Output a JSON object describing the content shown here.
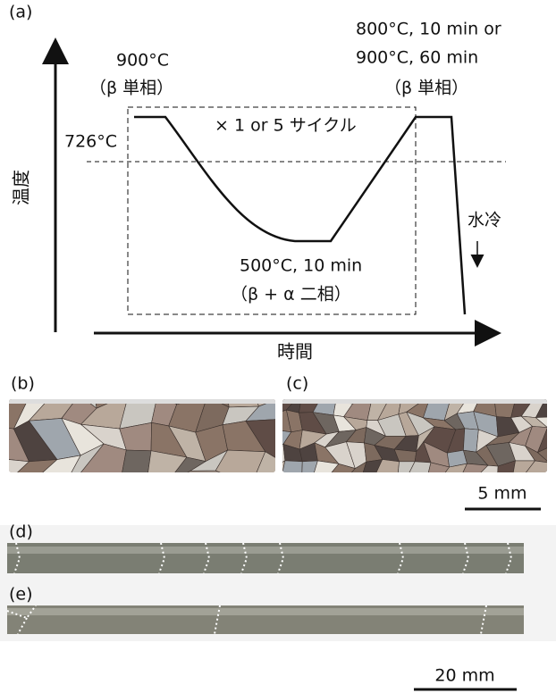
{
  "panel_a": {
    "label": "(a)",
    "y_axis": "温度",
    "x_axis": "時間",
    "start_temp": "900°C",
    "start_phase": "（β 単相）",
    "end_temp_1": "800°C, 10 min or",
    "end_temp_2": "900°C, 60 min",
    "end_phase": "（β 単相）",
    "cycle": "× 1 or 5 サイクル",
    "transus": "726°C",
    "quench": "水冷",
    "hold_temp": "500°C, 10 min",
    "hold_phase": "（β + α 二相）"
  },
  "panel_b": {
    "label": "(b)"
  },
  "panel_c": {
    "label": "(c)"
  },
  "scale_bc": "5 mm",
  "panel_d": {
    "label": "(d)"
  },
  "panel_e": {
    "label": "(e)"
  },
  "scale_de": "20 mm"
}
